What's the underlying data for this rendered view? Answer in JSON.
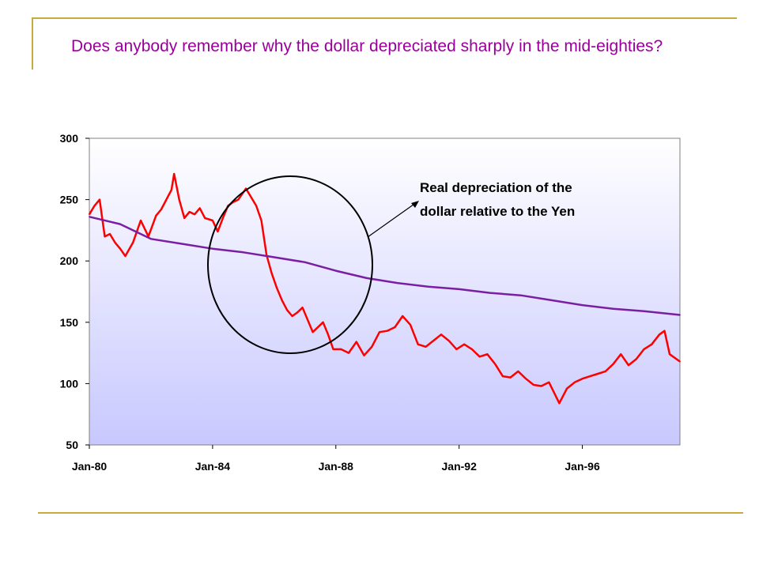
{
  "slide": {
    "title": "Does anybody remember why the dollar depreciated sharply in the mid-eighties?",
    "accent_color": "#c8a93c",
    "title_color": "#990099"
  },
  "chart_data": {
    "type": "line",
    "title": "",
    "xlabel": "",
    "ylabel": "",
    "x_range": [
      "1980-01",
      "1999-03"
    ],
    "x_ticks": [
      "Jan-80",
      "Jan-84",
      "Jan-88",
      "Jan-92",
      "Jan-96"
    ],
    "ylim": [
      50,
      300
    ],
    "y_ticks": [
      50,
      100,
      150,
      200,
      250,
      300
    ],
    "grid": false,
    "legend": "none",
    "plot_background": "gradient white to lavender",
    "series": [
      {
        "color": "#ff0000",
        "points": [
          [
            "1980-01",
            238
          ],
          [
            "1980-03",
            245
          ],
          [
            "1980-05",
            250
          ],
          [
            "1980-07",
            220
          ],
          [
            "1980-09",
            222
          ],
          [
            "1980-11",
            215
          ],
          [
            "1981-01",
            210
          ],
          [
            "1981-03",
            204
          ],
          [
            "1981-06",
            215
          ],
          [
            "1981-09",
            233
          ],
          [
            "1981-12",
            220
          ],
          [
            "1982-03",
            237
          ],
          [
            "1982-05",
            242
          ],
          [
            "1982-07",
            250
          ],
          [
            "1982-09",
            258
          ],
          [
            "1982-10",
            271
          ],
          [
            "1982-12",
            250
          ],
          [
            "1983-02",
            235
          ],
          [
            "1983-04",
            240
          ],
          [
            "1983-06",
            238
          ],
          [
            "1983-08",
            243
          ],
          [
            "1983-10",
            235
          ],
          [
            "1984-01",
            233
          ],
          [
            "1984-03",
            224
          ],
          [
            "1984-05",
            235
          ],
          [
            "1984-07",
            245
          ],
          [
            "1984-09",
            248
          ],
          [
            "1984-11",
            250
          ],
          [
            "1985-02",
            259
          ],
          [
            "1985-04",
            252
          ],
          [
            "1985-06",
            245
          ],
          [
            "1985-08",
            233
          ],
          [
            "1985-10",
            205
          ],
          [
            "1985-12",
            190
          ],
          [
            "1986-02",
            178
          ],
          [
            "1986-04",
            168
          ],
          [
            "1986-06",
            160
          ],
          [
            "1986-08",
            155
          ],
          [
            "1986-10",
            158
          ],
          [
            "1986-12",
            162
          ],
          [
            "1987-02",
            152
          ],
          [
            "1987-04",
            142
          ],
          [
            "1987-06",
            146
          ],
          [
            "1987-08",
            150
          ],
          [
            "1987-10",
            140
          ],
          [
            "1987-12",
            128
          ],
          [
            "1988-03",
            128
          ],
          [
            "1988-06",
            125
          ],
          [
            "1988-09",
            134
          ],
          [
            "1988-12",
            123
          ],
          [
            "1989-03",
            130
          ],
          [
            "1989-06",
            142
          ],
          [
            "1989-09",
            143
          ],
          [
            "1989-12",
            146
          ],
          [
            "1990-03",
            155
          ],
          [
            "1990-06",
            148
          ],
          [
            "1990-09",
            132
          ],
          [
            "1990-12",
            130
          ],
          [
            "1991-03",
            135
          ],
          [
            "1991-06",
            140
          ],
          [
            "1991-09",
            135
          ],
          [
            "1991-12",
            128
          ],
          [
            "1992-03",
            132
          ],
          [
            "1992-06",
            128
          ],
          [
            "1992-09",
            122
          ],
          [
            "1992-12",
            124
          ],
          [
            "1993-03",
            116
          ],
          [
            "1993-06",
            106
          ],
          [
            "1993-09",
            105
          ],
          [
            "1993-12",
            110
          ],
          [
            "1994-03",
            104
          ],
          [
            "1994-06",
            99
          ],
          [
            "1994-09",
            98
          ],
          [
            "1994-12",
            101
          ],
          [
            "1995-04",
            84
          ],
          [
            "1995-07",
            96
          ],
          [
            "1995-10",
            101
          ],
          [
            "1996-01",
            104
          ],
          [
            "1996-04",
            106
          ],
          [
            "1996-07",
            108
          ],
          [
            "1996-10",
            110
          ],
          [
            "1997-01",
            116
          ],
          [
            "1997-04",
            124
          ],
          [
            "1997-07",
            115
          ],
          [
            "1997-10",
            120
          ],
          [
            "1998-01",
            128
          ],
          [
            "1998-04",
            132
          ],
          [
            "1998-07",
            140
          ],
          [
            "1998-09",
            143
          ],
          [
            "1998-11",
            124
          ],
          [
            "1999-03",
            118
          ]
        ]
      },
      {
        "color": "#7a1fa2",
        "points": [
          [
            "1980-01",
            236
          ],
          [
            "1981-01",
            230
          ],
          [
            "1982-01",
            218
          ],
          [
            "1983-01",
            214
          ],
          [
            "1984-01",
            210
          ],
          [
            "1985-01",
            207
          ],
          [
            "1986-01",
            203
          ],
          [
            "1987-01",
            199
          ],
          [
            "1988-01",
            192
          ],
          [
            "1989-01",
            186
          ],
          [
            "1990-01",
            182
          ],
          [
            "1991-01",
            179
          ],
          [
            "1992-01",
            177
          ],
          [
            "1993-01",
            174
          ],
          [
            "1994-01",
            172
          ],
          [
            "1995-01",
            168
          ],
          [
            "1996-01",
            164
          ],
          [
            "1997-01",
            161
          ],
          [
            "1998-01",
            159
          ],
          [
            "1999-03",
            156
          ]
        ]
      }
    ],
    "annotation": {
      "text_line1": "Real depreciation of the",
      "text_line2": "dollar relative to the Yen"
    }
  }
}
